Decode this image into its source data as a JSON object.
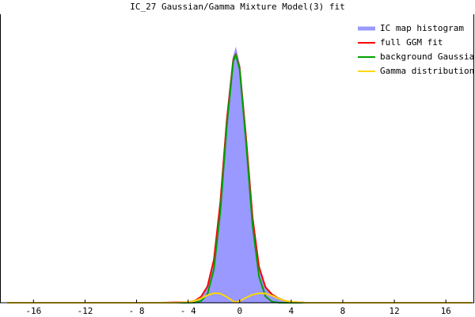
{
  "chart_data": {
    "type": "line",
    "title": "IC_27 Gaussian/Gamma Mixture Model(3) fit",
    "x": [
      -18,
      -16,
      -14,
      -12,
      -10,
      -8,
      -6,
      -5,
      -4,
      -3.5,
      -3,
      -2.5,
      -2,
      -1.5,
      -1,
      -0.5,
      -0.3,
      0,
      0.5,
      1,
      1.5,
      2,
      2.5,
      3,
      3.5,
      4,
      5,
      6,
      8,
      10,
      12,
      14,
      16,
      18
    ],
    "series": [
      {
        "name": "IC map histogram",
        "color": "#9999ff",
        "fill": true,
        "values": [
          0,
          0,
          0,
          0,
          0,
          0,
          0,
          0.001,
          0.002,
          0.007,
          0.021,
          0.058,
          0.152,
          0.352,
          0.64,
          0.85,
          0.88,
          0.82,
          0.575,
          0.3,
          0.127,
          0.055,
          0.03,
          0.016,
          0.007,
          0.003,
          0.0005,
          0,
          0,
          0,
          0,
          0,
          0,
          0
        ]
      },
      {
        "name": "full GGM fit",
        "color": "#ff0000",
        "values": [
          0,
          0,
          0,
          0,
          0,
          0,
          0,
          0.001,
          0.0021,
          0.0067,
          0.0206,
          0.056,
          0.149,
          0.349,
          0.633,
          0.842,
          0.862,
          0.814,
          0.57,
          0.295,
          0.124,
          0.054,
          0.029,
          0.0155,
          0.007,
          0.003,
          0.0005,
          0,
          0,
          0,
          0,
          0,
          0,
          0
        ]
      },
      {
        "name": "background Gaussian",
        "color": "#00a000",
        "values": [
          0,
          0,
          0,
          0,
          0,
          0,
          0,
          0,
          0.0001,
          0.0007,
          0.0056,
          0.03,
          0.116,
          0.317,
          0.613,
          0.837,
          0.86,
          0.808,
          0.552,
          0.267,
          0.091,
          0.022,
          0.0038,
          0.0005,
          0,
          0,
          0,
          0,
          0,
          0,
          0,
          0,
          0,
          0
        ]
      },
      {
        "name": "Gamma distributions",
        "color": "#ffd700",
        "values": [
          0,
          0,
          0,
          0,
          0,
          0,
          0,
          0,
          0.002,
          0.006,
          0.015,
          0.026,
          0.033,
          0.032,
          0.02,
          0.005,
          0.002,
          0.006,
          0.018,
          0.028,
          0.033,
          0.032,
          0.025,
          0.015,
          0.007,
          0.003,
          0.0005,
          0,
          0,
          0,
          0,
          0,
          0,
          0
        ]
      }
    ],
    "xlim": [
      -18.6,
      18.2
    ],
    "xticks": [
      -16,
      -12,
      {
        "value": -8,
        "label": "- 8"
      },
      {
        "value": -4,
        "label": "- 4"
      },
      0,
      4,
      8,
      12,
      16
    ],
    "ylim": [
      0,
      1
    ],
    "legend": "top-right"
  }
}
